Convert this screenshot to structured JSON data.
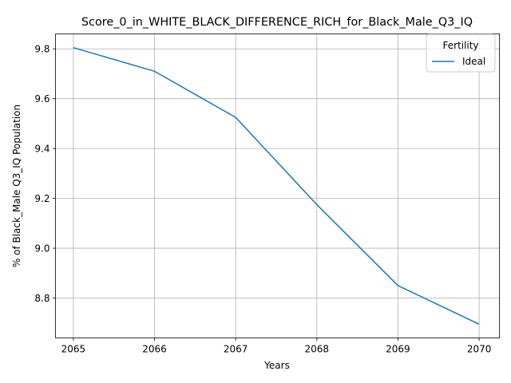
{
  "chart_data": {
    "type": "line",
    "title": "Score_0_in_WHITE_BLACK_DIFFERENCE_RICH_for_Black_Male_Q3_IQ",
    "xlabel": "Years",
    "ylabel": "% of Black_Male Q3_IQ Population",
    "x": [
      2065,
      2066,
      2067,
      2068,
      2069,
      2070
    ],
    "x_ticks": [
      "2065",
      "2066",
      "2067",
      "2068",
      "2069",
      "2070"
    ],
    "y_ticks": [
      "8.8",
      "9.0",
      "9.2",
      "9.4",
      "9.6",
      "9.8"
    ],
    "xlim": [
      2064.78,
      2070.25
    ],
    "ylim": [
      8.64,
      9.86
    ],
    "grid": true,
    "legend": {
      "title": "Fertility",
      "placement": "top-right"
    },
    "series": [
      {
        "name": "Ideal",
        "color": "#1f77b4",
        "values": [
          9.805,
          9.71,
          9.525,
          9.175,
          8.85,
          8.695
        ]
      }
    ]
  }
}
